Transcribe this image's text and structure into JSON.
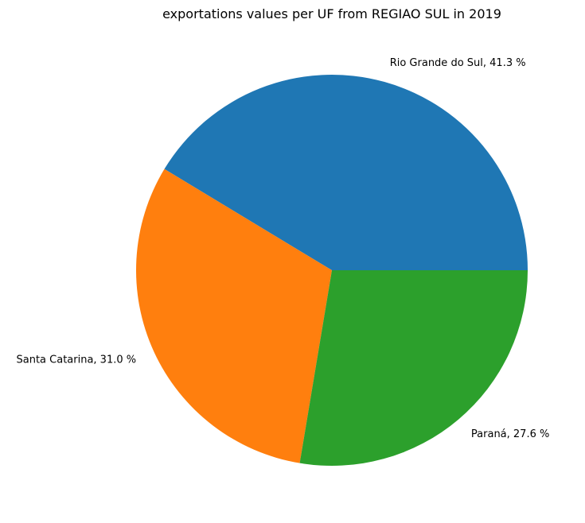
{
  "chart_data": {
    "type": "pie",
    "title": "exportations values per UF from REGIAO SUL in 2019",
    "slices": [
      {
        "label": "Rio Grande do Sul",
        "percent": 41.3,
        "display": "Rio Grande do Sul, 41.3 %",
        "color": "#1f77b4"
      },
      {
        "label": "Santa Catarina",
        "percent": 31.0,
        "display": "Santa Catarina, 31.0 %",
        "color": "#ff7f0e"
      },
      {
        "label": "Paraná",
        "percent": 27.6,
        "display": "Paraná, 27.6 %",
        "color": "#2ca02c"
      }
    ],
    "start_angle_deg": 0,
    "direction": "counterclockwise",
    "legend": "none"
  }
}
